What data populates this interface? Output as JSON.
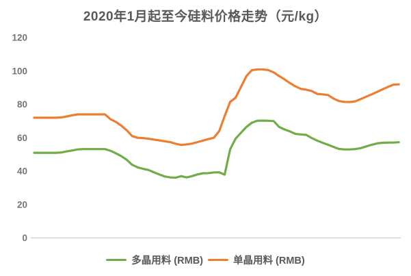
{
  "chart_data": {
    "type": "line",
    "title": "2020年1月起至今硅料价格走势（元/kg）",
    "xlabel": "",
    "ylabel": "",
    "x_tick_labels": [],
    "yticks": [
      "120",
      "100",
      "80",
      "60",
      "40",
      "20",
      "0"
    ],
    "ylim": [
      0,
      120
    ],
    "grid": false,
    "legend_position": "bottom",
    "series": [
      {
        "name": "多晶用料 (RMB)",
        "color": "#70AD47",
        "values": [
          51,
          51,
          51,
          51,
          51,
          51.2,
          51.8,
          52.4,
          53,
          53.2,
          53.2,
          53.2,
          53.2,
          53.2,
          52.2,
          50.7,
          49,
          46.8,
          43.8,
          42.3,
          41.4,
          40.7,
          39.3,
          38,
          36.8,
          36.2,
          36.1,
          37,
          36.2,
          37,
          38,
          38.7,
          38.8,
          39.2,
          39.3,
          37.9,
          53,
          59.5,
          63,
          66.5,
          69,
          70.2,
          70.3,
          70.2,
          70,
          66.5,
          65,
          63.8,
          62.3,
          62,
          61.7,
          59.8,
          58.3,
          57,
          55.8,
          54.5,
          53.3,
          53,
          53,
          53.2,
          53.8,
          54.8,
          55.8,
          56.6,
          57,
          57.1,
          57.1,
          57.3
        ]
      },
      {
        "name": "单晶用料 (RMB)",
        "color": "#ED7D31",
        "values": [
          72,
          72,
          72,
          72,
          72,
          72.2,
          72.8,
          73.5,
          74,
          74,
          74,
          74,
          74,
          74,
          71.2,
          69.5,
          67.3,
          64.5,
          61,
          60,
          59.8,
          59.4,
          58.9,
          58.4,
          57.9,
          57.4,
          56.4,
          55.7,
          56,
          56.5,
          57.4,
          58.3,
          59.2,
          60,
          64,
          73,
          81.5,
          84,
          90.5,
          97,
          100.5,
          101,
          101,
          100.6,
          99.2,
          97,
          95,
          92.8,
          90.8,
          89.3,
          88.8,
          88,
          86.3,
          86,
          85.6,
          83.5,
          82,
          81.5,
          81.4,
          81.8,
          83.2,
          84.6,
          86,
          87.5,
          89,
          90.5,
          91.8,
          92
        ]
      }
    ]
  },
  "colors": {
    "title_text": "#595959",
    "axis_text": "#757575",
    "axis_line": "#C9C9C9",
    "background": "#FFFFFF"
  }
}
